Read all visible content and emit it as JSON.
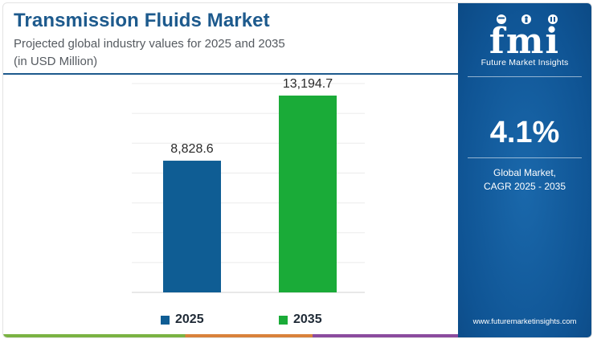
{
  "header": {
    "title": "Transmission Fluids Market",
    "subtitle": "Projected global industry values for 2025 and 2035",
    "unit": "(in USD Million)"
  },
  "chart_data": {
    "type": "bar",
    "categories": [
      "2025",
      "2035"
    ],
    "values": [
      8828.6,
      13194.7
    ],
    "value_labels": [
      "8,828.6",
      "13,194.7"
    ],
    "colors": [
      "#0f5d94",
      "#1aab38"
    ],
    "ylim": [
      0,
      14000
    ],
    "grid": true,
    "legend": {
      "position": "bottom",
      "entries": [
        {
          "label": "2025",
          "color": "#0f5d94"
        },
        {
          "label": "2035",
          "color": "#1aab38"
        }
      ]
    }
  },
  "side_panel": {
    "logo_letters": "fmi",
    "logo_text": "Future Market Insights",
    "cagr_value": "4.1%",
    "cagr_label_line1": "Global Market,",
    "cagr_label_line2": "CAGR 2025 - 2035",
    "website": "www.futuremarketinsights.com",
    "background_color": "#0f5494"
  }
}
